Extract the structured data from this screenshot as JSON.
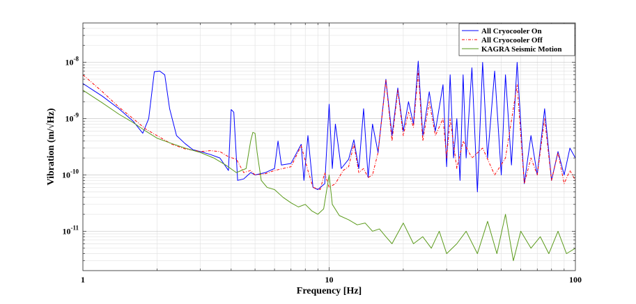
{
  "chart_data": {
    "type": "line",
    "title": "",
    "xlabel": "Frequency [Hz]",
    "ylabel": "Vibration (m/√Hz)",
    "xscale": "log",
    "yscale": "log",
    "xlim": [
      1,
      100
    ],
    "ylim": [
      2e-12,
      5e-08
    ],
    "grid": true,
    "legend_position": "top-right",
    "x_ticks": [
      {
        "value": 1,
        "label": "1"
      },
      {
        "value": 10,
        "label": "10"
      },
      {
        "value": 100,
        "label": "100"
      }
    ],
    "y_ticks": [
      {
        "value": 1e-11,
        "base": "10",
        "exp": "-11"
      },
      {
        "value": 1e-10,
        "base": "10",
        "exp": "-10"
      },
      {
        "value": 1e-09,
        "base": "10",
        "exp": "-9"
      },
      {
        "value": 1e-08,
        "base": "10",
        "exp": "-8"
      }
    ],
    "series": [
      {
        "name": "All Cryocooler On",
        "color": "#0000ff",
        "dash": "solid",
        "points": [
          [
            1,
            4.2e-09
          ],
          [
            1.2,
            2.5e-09
          ],
          [
            1.4,
            1.5e-09
          ],
          [
            1.6,
            9e-10
          ],
          [
            1.75,
            5.5e-10
          ],
          [
            1.85,
            1e-09
          ],
          [
            1.95,
            6.8e-09
          ],
          [
            2.05,
            7e-09
          ],
          [
            2.15,
            6e-09
          ],
          [
            2.25,
            1.5e-09
          ],
          [
            2.4,
            5e-10
          ],
          [
            2.6,
            3.6e-10
          ],
          [
            2.8,
            2.8e-10
          ],
          [
            3.0,
            2.6e-10
          ],
          [
            3.3,
            2.3e-10
          ],
          [
            3.6,
            2e-10
          ],
          [
            3.9,
            1.2e-10
          ],
          [
            4.0,
            1.45e-09
          ],
          [
            4.1,
            1.3e-09
          ],
          [
            4.25,
            8e-11
          ],
          [
            4.5,
            8.5e-11
          ],
          [
            4.8,
            1.1e-10
          ],
          [
            5.0,
            1e-10
          ],
          [
            5.5,
            1.1e-10
          ],
          [
            6.0,
            1.3e-10
          ],
          [
            6.2,
            4e-10
          ],
          [
            6.4,
            1.5e-10
          ],
          [
            7.0,
            1.6e-10
          ],
          [
            7.7,
            3.5e-10
          ],
          [
            7.9,
            8e-11
          ],
          [
            8.2,
            5e-10
          ],
          [
            8.6,
            6e-11
          ],
          [
            9.0,
            5.5e-11
          ],
          [
            9.6,
            7e-11
          ],
          [
            10.0,
            1.8e-09
          ],
          [
            10.3,
            1.3e-10
          ],
          [
            10.6,
            8e-10
          ],
          [
            11.2,
            1.3e-10
          ],
          [
            12.0,
            1.9e-10
          ],
          [
            12.6,
            4.2e-10
          ],
          [
            13.2,
            1.3e-10
          ],
          [
            13.8,
            1.5e-09
          ],
          [
            14.4,
            9e-11
          ],
          [
            15.0,
            8e-10
          ],
          [
            15.8,
            2.5e-10
          ],
          [
            17.0,
            5e-09
          ],
          [
            18.0,
            5e-10
          ],
          [
            19.0,
            3.5e-09
          ],
          [
            20.0,
            6e-10
          ],
          [
            21.0,
            2e-09
          ],
          [
            22.0,
            8e-10
          ],
          [
            23.0,
            1.05e-08
          ],
          [
            24.0,
            5e-10
          ],
          [
            25.5,
            3e-09
          ],
          [
            27.0,
            6e-10
          ],
          [
            29.0,
            4e-09
          ],
          [
            30.0,
            1.4e-10
          ],
          [
            31.0,
            6e-09
          ],
          [
            32.0,
            2e-10
          ],
          [
            33.0,
            1e-09
          ],
          [
            34.0,
            8e-11
          ],
          [
            35.0,
            6e-09
          ],
          [
            36.0,
            2e-10
          ],
          [
            38.0,
            8e-09
          ],
          [
            40.0,
            5e-11
          ],
          [
            42.0,
            1e-08
          ],
          [
            44.0,
            2e-10
          ],
          [
            47.0,
            7e-09
          ],
          [
            50.0,
            1e-10
          ],
          [
            52.0,
            6e-09
          ],
          [
            55.0,
            1.5e-10
          ],
          [
            58.0,
            1e-08
          ],
          [
            62.0,
            7e-11
          ],
          [
            66.0,
            5e-10
          ],
          [
            70.0,
            1e-10
          ],
          [
            75.0,
            1.5e-09
          ],
          [
            80.0,
            8e-11
          ],
          [
            85.0,
            2.6e-10
          ],
          [
            90.0,
            1e-10
          ],
          [
            95.0,
            3e-10
          ],
          [
            100.0,
            2e-10
          ]
        ]
      },
      {
        "name": "All Cryocooler Off",
        "color": "#ff0000",
        "dash": "dash-dot",
        "points": [
          [
            1,
            6e-09
          ],
          [
            1.2,
            3e-09
          ],
          [
            1.4,
            1.6e-09
          ],
          [
            1.6,
            1e-09
          ],
          [
            1.8,
            6.5e-10
          ],
          [
            2.0,
            5e-10
          ],
          [
            2.3,
            3.5e-10
          ],
          [
            2.6,
            2.9e-10
          ],
          [
            3.0,
            2.6e-10
          ],
          [
            3.3,
            2.7e-10
          ],
          [
            3.6,
            2.6e-10
          ],
          [
            3.9,
            2.1e-10
          ],
          [
            4.2,
            1.9e-10
          ],
          [
            4.5,
            1.1e-10
          ],
          [
            4.8,
            1.2e-10
          ],
          [
            5.0,
            1e-10
          ],
          [
            5.5,
            1.05e-10
          ],
          [
            6.0,
            1.2e-10
          ],
          [
            7.0,
            1.4e-10
          ],
          [
            7.7,
            3.3e-10
          ],
          [
            8.2,
            1.2e-10
          ],
          [
            8.6,
            6e-11
          ],
          [
            9.2,
            5.5e-11
          ],
          [
            9.6,
            1.1e-10
          ],
          [
            10.0,
            6e-11
          ],
          [
            10.6,
            7e-11
          ],
          [
            11.4,
            1.2e-10
          ],
          [
            12.0,
            1.4e-10
          ],
          [
            12.6,
            3.5e-10
          ],
          [
            13.2,
            1.1e-10
          ],
          [
            13.8,
            1.3e-10
          ],
          [
            14.4,
            9e-11
          ],
          [
            15.0,
            1e-10
          ],
          [
            15.8,
            2.5e-10
          ],
          [
            17.0,
            4.8e-09
          ],
          [
            18.0,
            4e-10
          ],
          [
            19.0,
            3.2e-09
          ],
          [
            20.0,
            5e-10
          ],
          [
            21.0,
            1.3e-09
          ],
          [
            22.0,
            7e-10
          ],
          [
            23.0,
            7e-09
          ],
          [
            24.0,
            4e-10
          ],
          [
            25.5,
            2e-09
          ],
          [
            27.0,
            5e-10
          ],
          [
            29.0,
            1e-09
          ],
          [
            30.0,
            2e-10
          ],
          [
            31.0,
            1e-09
          ],
          [
            33.0,
            1.3e-10
          ],
          [
            35.0,
            4e-10
          ],
          [
            38.0,
            2e-10
          ],
          [
            42.0,
            3e-10
          ],
          [
            47.0,
            1e-10
          ],
          [
            52.0,
            2e-10
          ],
          [
            58.0,
            4e-09
          ],
          [
            62.0,
            7e-11
          ],
          [
            66.0,
            2e-10
          ],
          [
            70.0,
            1e-10
          ],
          [
            75.0,
            1e-09
          ],
          [
            80.0,
            8e-11
          ],
          [
            85.0,
            2.5e-10
          ],
          [
            90.0,
            7e-11
          ],
          [
            95.0,
            1.2e-10
          ],
          [
            100.0,
            8e-11
          ]
        ]
      },
      {
        "name": "KAGRA Seismic Motion",
        "color": "#5a9a1a",
        "dash": "solid",
        "points": [
          [
            1,
            3.2e-09
          ],
          [
            1.2,
            1.9e-09
          ],
          [
            1.4,
            1.2e-09
          ],
          [
            1.6,
            8.5e-10
          ],
          [
            1.8,
            6e-10
          ],
          [
            2.0,
            4.5e-10
          ],
          [
            2.3,
            3.6e-10
          ],
          [
            2.6,
            3e-10
          ],
          [
            3.0,
            2.5e-10
          ],
          [
            3.4,
            2e-10
          ],
          [
            3.8,
            1.5e-10
          ],
          [
            4.2,
            1.1e-10
          ],
          [
            4.6,
            1.3e-10
          ],
          [
            4.8,
            4e-10
          ],
          [
            4.9,
            5.7e-10
          ],
          [
            5.0,
            5.5e-10
          ],
          [
            5.1,
            2.5e-10
          ],
          [
            5.3,
            8e-11
          ],
          [
            5.6,
            6e-11
          ],
          [
            6.0,
            5.5e-11
          ],
          [
            6.5,
            4e-11
          ],
          [
            7.0,
            3.2e-11
          ],
          [
            7.5,
            2.7e-11
          ],
          [
            8.0,
            3e-11
          ],
          [
            8.5,
            2.3e-11
          ],
          [
            9.0,
            2e-11
          ],
          [
            9.5,
            2.5e-11
          ],
          [
            10.0,
            1e-10
          ],
          [
            10.3,
            3e-11
          ],
          [
            11.0,
            1.9e-11
          ],
          [
            12.0,
            1.6e-11
          ],
          [
            13.0,
            1.3e-11
          ],
          [
            14.0,
            1.4e-11
          ],
          [
            15.0,
            1e-11
          ],
          [
            16.0,
            1.1e-11
          ],
          [
            17.0,
            8e-12
          ],
          [
            18.0,
            6e-12
          ],
          [
            20.0,
            1.4e-11
          ],
          [
            22.0,
            6e-12
          ],
          [
            24.0,
            8e-12
          ],
          [
            26.0,
            5e-12
          ],
          [
            28.0,
            1e-11
          ],
          [
            30.0,
            4e-12
          ],
          [
            33.0,
            6e-12
          ],
          [
            36.0,
            1e-11
          ],
          [
            40.0,
            4e-12
          ],
          [
            44.0,
            1.5e-11
          ],
          [
            48.0,
            4e-12
          ],
          [
            52.0,
            2e-11
          ],
          [
            56.0,
            3e-12
          ],
          [
            60.0,
            1e-11
          ],
          [
            66.0,
            5e-12
          ],
          [
            72.0,
            8e-12
          ],
          [
            78.0,
            4e-12
          ],
          [
            85.0,
            1e-11
          ],
          [
            92.0,
            4e-12
          ],
          [
            100.0,
            5e-12
          ]
        ]
      }
    ]
  }
}
